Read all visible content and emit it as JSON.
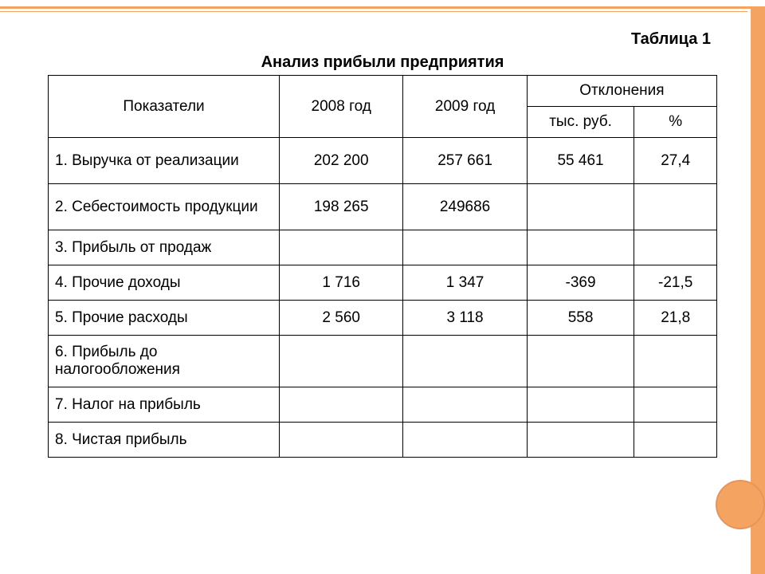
{
  "table_label": "Таблица 1",
  "table_title": "Анализ прибыли предприятия",
  "headers": {
    "indicators": "Показатели",
    "year2008": "2008 год",
    "year2009": "2009 год",
    "deviations": "Отклонения",
    "thousand_rub": "тыс. руб.",
    "percent": "%"
  },
  "rows": [
    {
      "label": "1. Выручка от реализации",
      "y2008": "202 200",
      "y2009": "257 661",
      "dev": "55 461",
      "pct": "27,4"
    },
    {
      "label": "2. Себестоимость продукции",
      "y2008": "198 265",
      "y2009": "249686",
      "dev": "",
      "pct": ""
    },
    {
      "label": "3. Прибыль от продаж",
      "y2008": "",
      "y2009": "",
      "dev": "",
      "pct": ""
    },
    {
      "label": "4. Прочие доходы",
      "y2008": "1 716",
      "y2009": "1 347",
      "dev": "-369",
      "pct": "-21,5"
    },
    {
      "label": "5. Прочие расходы",
      "y2008": "2 560",
      "y2009": "3 118",
      "dev": "558",
      "pct": "21,8"
    },
    {
      "label": "6. Прибыль до налогообложения",
      "y2008": "",
      "y2009": "",
      "dev": "",
      "pct": ""
    },
    {
      "label": "7. Налог на прибыль",
      "y2008": "",
      "y2009": "",
      "dev": "",
      "pct": ""
    },
    {
      "label": "8.  Чистая прибыль",
      "y2008": "",
      "y2009": "",
      "dev": "",
      "pct": ""
    }
  ],
  "styling": {
    "accent_color": "#f4a460",
    "border_color": "#000000",
    "background_color": "#ffffff",
    "font_family": "Arial",
    "title_fontsize": 20,
    "cell_fontsize": 19,
    "column_widths": {
      "indicator": 280,
      "year": 150,
      "deviation": 130,
      "percent": 100
    }
  }
}
